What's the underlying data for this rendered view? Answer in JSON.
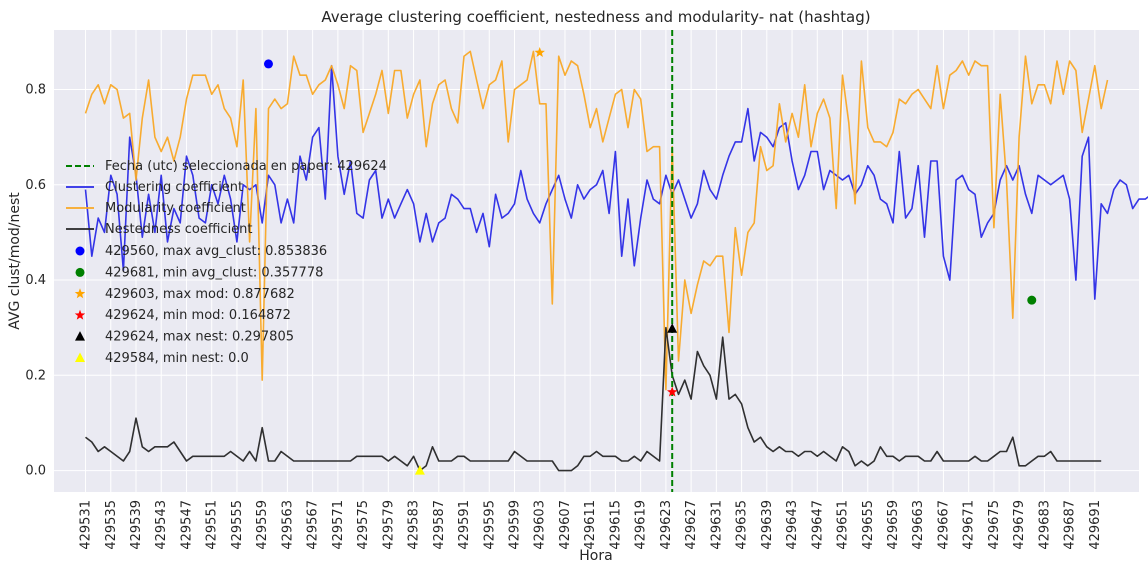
{
  "chart_data": {
    "type": "line",
    "title": "Average clustering coefficient, nestedness and modularity- nat (hashtag)",
    "xlabel": "Hora",
    "ylabel": "AVG clust/mod/nest",
    "x_start": 429531,
    "x_end": 429693,
    "xticks": [
      429531,
      429535,
      429539,
      429543,
      429547,
      429551,
      429555,
      429559,
      429563,
      429567,
      429571,
      429575,
      429579,
      429583,
      429587,
      429591,
      429595,
      429599,
      429603,
      429607,
      429611,
      429615,
      429619,
      429623,
      429627,
      429631,
      429635,
      429639,
      429643,
      429647,
      429651,
      429655,
      429659,
      429663,
      429667,
      429671,
      429675,
      429679,
      429683,
      429687,
      429691
    ],
    "xlim": [
      429526,
      429698
    ],
    "ylim": [
      -0.045,
      0.925
    ],
    "yticks": [
      0.0,
      0.2,
      0.4,
      0.6,
      0.8
    ],
    "ytick_labels": [
      "0.0",
      "0.2",
      "0.4",
      "0.6",
      "0.8"
    ],
    "grid": true,
    "legend_position": "center-left",
    "vline": {
      "x": 429624,
      "label": "Fecha (utc) seleccionada en paper: 429624",
      "color": "#008000"
    },
    "series": [
      {
        "name": "Clustering coefficient",
        "color": "#2a2ae6",
        "values": [
          0.59,
          0.45,
          0.53,
          0.5,
          0.62,
          0.58,
          0.42,
          0.7,
          0.62,
          0.49,
          0.58,
          0.5,
          0.62,
          0.48,
          0.55,
          0.52,
          0.66,
          0.62,
          0.53,
          0.52,
          0.6,
          0.56,
          0.62,
          0.57,
          0.48,
          0.6,
          0.59,
          0.6,
          0.52,
          0.62,
          0.6,
          0.52,
          0.57,
          0.52,
          0.66,
          0.61,
          0.7,
          0.72,
          0.57,
          0.85,
          0.66,
          0.58,
          0.65,
          0.54,
          0.53,
          0.61,
          0.63,
          0.53,
          0.57,
          0.53,
          0.56,
          0.59,
          0.56,
          0.48,
          0.54,
          0.48,
          0.52,
          0.53,
          0.58,
          0.57,
          0.55,
          0.55,
          0.5,
          0.54,
          0.47,
          0.58,
          0.53,
          0.54,
          0.56,
          0.63,
          0.57,
          0.54,
          0.52,
          0.56,
          0.59,
          0.62,
          0.57,
          0.53,
          0.6,
          0.57,
          0.59,
          0.6,
          0.63,
          0.54,
          0.67,
          0.45,
          0.57,
          0.43,
          0.53,
          0.61,
          0.57,
          0.56,
          0.62,
          0.58,
          0.61,
          0.57,
          0.53,
          0.56,
          0.63,
          0.59,
          0.57,
          0.62,
          0.66,
          0.69,
          0.69,
          0.76,
          0.65,
          0.71,
          0.7,
          0.68,
          0.72,
          0.73,
          0.65,
          0.59,
          0.62,
          0.67,
          0.67,
          0.59,
          0.63,
          0.62,
          0.61,
          0.62,
          0.58,
          0.6,
          0.64,
          0.62,
          0.57,
          0.56,
          0.52,
          0.67,
          0.53,
          0.55,
          0.64,
          0.49,
          0.65,
          0.65,
          0.45,
          0.4,
          0.61,
          0.62,
          0.59,
          0.58,
          0.49,
          0.52,
          0.54,
          0.61,
          0.64,
          0.61,
          0.64,
          0.58,
          0.54,
          0.62,
          0.61,
          0.6,
          0.61,
          0.62,
          0.57,
          0.4,
          0.66,
          0.7,
          0.36,
          0.56,
          0.54,
          0.59,
          0.61,
          0.6,
          0.55,
          0.57,
          0.57,
          0.58,
          0.56,
          0.59,
          0.58,
          0.6
        ]
      },
      {
        "name": "Modularity coefficient",
        "color": "#f9a825",
        "values": [
          0.75,
          0.79,
          0.81,
          0.77,
          0.81,
          0.8,
          0.74,
          0.75,
          0.61,
          0.74,
          0.82,
          0.7,
          0.67,
          0.7,
          0.65,
          0.7,
          0.78,
          0.83,
          0.83,
          0.83,
          0.79,
          0.81,
          0.76,
          0.74,
          0.68,
          0.82,
          0.48,
          0.76,
          0.19,
          0.76,
          0.78,
          0.76,
          0.77,
          0.87,
          0.83,
          0.83,
          0.79,
          0.81,
          0.82,
          0.85,
          0.81,
          0.76,
          0.85,
          0.84,
          0.71,
          0.75,
          0.79,
          0.84,
          0.75,
          0.84,
          0.84,
          0.74,
          0.79,
          0.82,
          0.68,
          0.77,
          0.81,
          0.82,
          0.76,
          0.73,
          0.87,
          0.88,
          0.82,
          0.76,
          0.81,
          0.82,
          0.86,
          0.69,
          0.8,
          0.81,
          0.82,
          0.88,
          0.77,
          0.77,
          0.35,
          0.87,
          0.83,
          0.86,
          0.85,
          0.79,
          0.72,
          0.76,
          0.69,
          0.74,
          0.79,
          0.8,
          0.72,
          0.8,
          0.78,
          0.67,
          0.68,
          0.68,
          0.17,
          0.68,
          0.23,
          0.4,
          0.33,
          0.39,
          0.44,
          0.43,
          0.45,
          0.45,
          0.29,
          0.51,
          0.41,
          0.5,
          0.52,
          0.68,
          0.63,
          0.64,
          0.77,
          0.69,
          0.75,
          0.7,
          0.81,
          0.68,
          0.75,
          0.78,
          0.74,
          0.55,
          0.83,
          0.73,
          0.56,
          0.86,
          0.72,
          0.69,
          0.69,
          0.68,
          0.71,
          0.78,
          0.77,
          0.79,
          0.8,
          0.78,
          0.76,
          0.85,
          0.76,
          0.83,
          0.84,
          0.86,
          0.83,
          0.86,
          0.85,
          0.85,
          0.51,
          0.79,
          0.61,
          0.32,
          0.7,
          0.87,
          0.77,
          0.81,
          0.81,
          0.77,
          0.86,
          0.79,
          0.86,
          0.84,
          0.71,
          0.78,
          0.85,
          0.76,
          0.82
        ]
      },
      {
        "name": "Nestedness coefficient",
        "color": "#262626",
        "values": [
          0.07,
          0.06,
          0.04,
          0.05,
          0.04,
          0.03,
          0.02,
          0.04,
          0.11,
          0.05,
          0.04,
          0.05,
          0.05,
          0.05,
          0.06,
          0.04,
          0.02,
          0.03,
          0.03,
          0.03,
          0.03,
          0.03,
          0.03,
          0.04,
          0.03,
          0.02,
          0.04,
          0.02,
          0.09,
          0.02,
          0.02,
          0.04,
          0.03,
          0.02,
          0.02,
          0.02,
          0.02,
          0.02,
          0.02,
          0.02,
          0.02,
          0.02,
          0.02,
          0.03,
          0.03,
          0.03,
          0.03,
          0.03,
          0.02,
          0.03,
          0.02,
          0.01,
          0.03,
          0.0,
          0.01,
          0.05,
          0.02,
          0.02,
          0.02,
          0.03,
          0.03,
          0.02,
          0.02,
          0.02,
          0.02,
          0.02,
          0.02,
          0.02,
          0.04,
          0.03,
          0.02,
          0.02,
          0.02,
          0.02,
          0.02,
          0.0,
          0.0,
          0.0,
          0.01,
          0.03,
          0.03,
          0.04,
          0.03,
          0.03,
          0.03,
          0.02,
          0.02,
          0.03,
          0.02,
          0.04,
          0.03,
          0.02,
          0.3,
          0.2,
          0.16,
          0.19,
          0.15,
          0.25,
          0.22,
          0.2,
          0.15,
          0.28,
          0.15,
          0.16,
          0.14,
          0.09,
          0.06,
          0.07,
          0.05,
          0.04,
          0.05,
          0.04,
          0.04,
          0.03,
          0.04,
          0.04,
          0.03,
          0.04,
          0.03,
          0.02,
          0.05,
          0.04,
          0.01,
          0.02,
          0.01,
          0.02,
          0.05,
          0.03,
          0.03,
          0.02,
          0.03,
          0.03,
          0.03,
          0.02,
          0.02,
          0.04,
          0.02,
          0.02,
          0.02,
          0.02,
          0.02,
          0.03,
          0.02,
          0.02,
          0.03,
          0.04,
          0.04,
          0.07,
          0.01,
          0.01,
          0.02,
          0.03,
          0.03,
          0.04,
          0.02,
          0.02,
          0.02,
          0.02,
          0.02,
          0.02,
          0.02,
          0.02
        ]
      }
    ],
    "markers": [
      {
        "x": 429560,
        "y": 0.853836,
        "color": "#0000ff",
        "shape": "circle",
        "label": "429560, max avg_clust: 0.853836"
      },
      {
        "x": 429681,
        "y": 0.357778,
        "color": "#008000",
        "shape": "circle",
        "label": "429681, min avg_clust: 0.357778"
      },
      {
        "x": 429603,
        "y": 0.877682,
        "color": "#ffa500",
        "shape": "star",
        "label": "429603, max mod: 0.877682"
      },
      {
        "x": 429624,
        "y": 0.164872,
        "color": "#ff0000",
        "shape": "star",
        "label": "429624, min mod: 0.164872"
      },
      {
        "x": 429624,
        "y": 0.297805,
        "color": "#000000",
        "shape": "triangle",
        "label": "429624, max nest: 0.297805"
      },
      {
        "x": 429584,
        "y": 0.0,
        "color": "#ffff00",
        "shape": "triangle",
        "label": "429584, min nest: 0.0"
      }
    ]
  }
}
